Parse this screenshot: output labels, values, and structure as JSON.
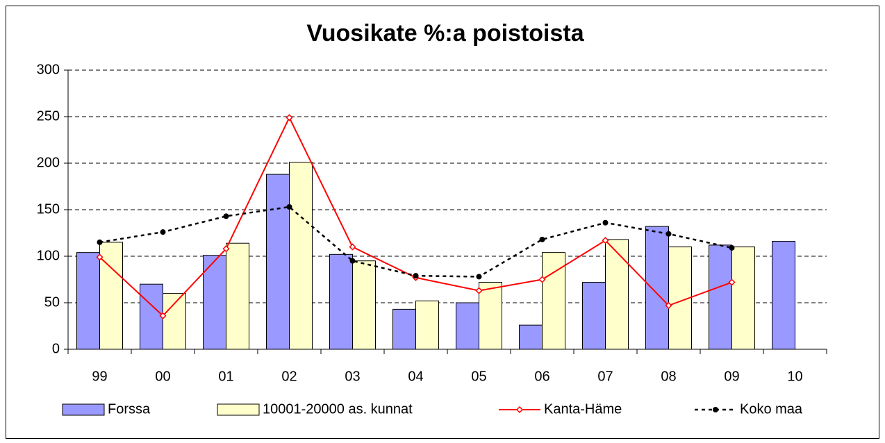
{
  "chart_data": {
    "type": "bar_line",
    "title": "Vuosikate %:a poistoista",
    "categories": [
      "99",
      "00",
      "01",
      "02",
      "03",
      "04",
      "05",
      "06",
      "07",
      "08",
      "09",
      "10"
    ],
    "series": [
      {
        "name": "Forssa",
        "type": "bar",
        "color": "#9999ff",
        "values": [
          104,
          70,
          101,
          188,
          102,
          43,
          50,
          26,
          72,
          132,
          112,
          116
        ]
      },
      {
        "name": "10001-20000 as. kunnat",
        "type": "bar",
        "color": "#ffffcc",
        "values": [
          115,
          60,
          114,
          201,
          95,
          52,
          72,
          104,
          118,
          110,
          110,
          null
        ]
      },
      {
        "name": "Kanta-Häme",
        "type": "line",
        "color": "#ff0000",
        "marker": "diamond",
        "values": [
          99,
          36,
          108,
          249,
          110,
          77,
          63,
          75,
          117,
          47,
          72,
          null
        ]
      },
      {
        "name": "Koko maa",
        "type": "line",
        "color": "#000000",
        "marker": "circle",
        "dashed": true,
        "values": [
          115,
          126,
          143,
          153,
          95,
          79,
          78,
          118,
          136,
          124,
          109,
          null
        ]
      }
    ],
    "ylim": [
      0,
      300
    ],
    "yticks": [
      0,
      50,
      100,
      150,
      200,
      250,
      300
    ],
    "grid": true,
    "legend": "bottom"
  }
}
